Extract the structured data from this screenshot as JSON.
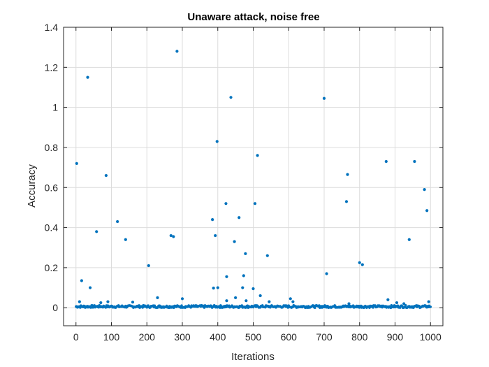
{
  "chart_data": {
    "type": "scatter",
    "title": "Unaware attack, noise free",
    "xlabel": "Iterations",
    "ylabel": "Accuracy",
    "xlim": [
      -35,
      1035
    ],
    "ylim": [
      -0.09,
      1.4
    ],
    "xticks": [
      "0",
      "100",
      "200",
      "300",
      "400",
      "500",
      "600",
      "700",
      "800",
      "900",
      "1000"
    ],
    "yticks": [
      "0",
      "0.2",
      "0.4",
      "0.6",
      "0.8",
      "1",
      "1.2",
      "1.4"
    ],
    "grid": true,
    "marker_color": "#0072bd",
    "points": [
      [
        2,
        0.72
      ],
      [
        16,
        0.135
      ],
      [
        33,
        1.15
      ],
      [
        40,
        0.1
      ],
      [
        58,
        0.38
      ],
      [
        85,
        0.66
      ],
      [
        117,
        0.43
      ],
      [
        140,
        0.34
      ],
      [
        205,
        0.21
      ],
      [
        268,
        0.36
      ],
      [
        275,
        0.355
      ],
      [
        285,
        1.28
      ],
      [
        385,
        0.44
      ],
      [
        393,
        0.36
      ],
      [
        398,
        0.83
      ],
      [
        423,
        0.52
      ],
      [
        437,
        1.05
      ],
      [
        447,
        0.33
      ],
      [
        460,
        0.45
      ],
      [
        478,
        0.27
      ],
      [
        505,
        0.52
      ],
      [
        512,
        0.76
      ],
      [
        540,
        0.26
      ],
      [
        700,
        1.045
      ],
      [
        707,
        0.17
      ],
      [
        763,
        0.53
      ],
      [
        766,
        0.665
      ],
      [
        800,
        0.225
      ],
      [
        808,
        0.215
      ],
      [
        875,
        0.73
      ],
      [
        940,
        0.34
      ],
      [
        955,
        0.73
      ],
      [
        983,
        0.59
      ],
      [
        990,
        0.485
      ],
      [
        388,
        0.098
      ],
      [
        400,
        0.1
      ],
      [
        425,
        0.155
      ],
      [
        470,
        0.1
      ],
      [
        473,
        0.16
      ],
      [
        500,
        0.095
      ],
      [
        230,
        0.05
      ],
      [
        300,
        0.045
      ],
      [
        605,
        0.045
      ],
      [
        612,
        0.03
      ],
      [
        880,
        0.04
      ],
      [
        995,
        0.03
      ],
      [
        10,
        0.03
      ],
      [
        70,
        0.025
      ],
      [
        90,
        0.03
      ],
      [
        160,
        0.028
      ],
      [
        425,
        0.035
      ],
      [
        450,
        0.05
      ],
      [
        520,
        0.06
      ],
      [
        545,
        0.03
      ],
      [
        770,
        0.02
      ],
      [
        905,
        0.025
      ],
      [
        925,
        0.02
      ],
      [
        480,
        0.035
      ]
    ],
    "baseline": {
      "x_start": 0,
      "x_end": 1000,
      "step": 2,
      "y_max": 0.012
    }
  }
}
